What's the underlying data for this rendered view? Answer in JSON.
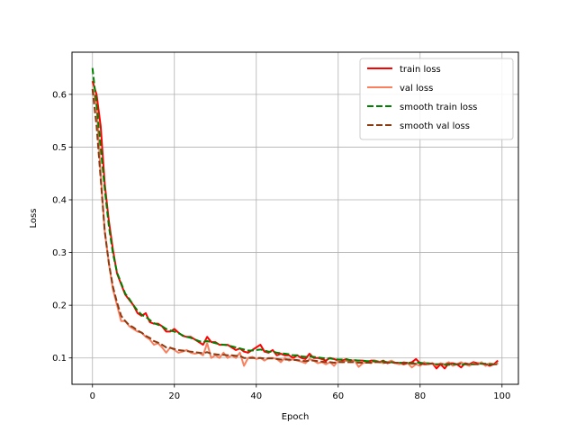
{
  "chart_data": {
    "type": "line",
    "title": "",
    "xlabel": "Epoch",
    "ylabel": "Loss",
    "xlim": [
      -5,
      104
    ],
    "ylim": [
      0.05,
      0.68
    ],
    "xticks": [
      0,
      20,
      40,
      60,
      80,
      100
    ],
    "yticks": [
      0.1,
      0.2,
      0.3,
      0.4,
      0.5,
      0.6
    ],
    "xtick_labels": [
      "0",
      "20",
      "40",
      "60",
      "80",
      "100"
    ],
    "ytick_labels": [
      "0.1",
      "0.2",
      "0.3",
      "0.4",
      "0.5",
      "0.6"
    ],
    "grid": true,
    "legend_position": "top-right",
    "series": [
      {
        "name": "train loss",
        "color": "#ff0000",
        "dash": "solid",
        "x": [
          0,
          1,
          2,
          3,
          4,
          5,
          6,
          7,
          8,
          9,
          10,
          11,
          12,
          13,
          14,
          15,
          16,
          17,
          18,
          19,
          20,
          21,
          22,
          23,
          24,
          25,
          26,
          27,
          28,
          29,
          30,
          31,
          32,
          33,
          34,
          35,
          36,
          37,
          38,
          39,
          40,
          41,
          42,
          43,
          44,
          45,
          46,
          47,
          48,
          49,
          50,
          51,
          52,
          53,
          54,
          55,
          56,
          57,
          58,
          59,
          60,
          61,
          62,
          63,
          64,
          65,
          66,
          67,
          68,
          69,
          70,
          71,
          72,
          73,
          74,
          75,
          76,
          77,
          78,
          79,
          80,
          81,
          82,
          83,
          84,
          85,
          86,
          87,
          88,
          89,
          90,
          91,
          92,
          93,
          94,
          95,
          96,
          97,
          98,
          99
        ],
        "y": [
          0.625,
          0.6,
          0.54,
          0.43,
          0.36,
          0.305,
          0.26,
          0.24,
          0.22,
          0.21,
          0.2,
          0.185,
          0.18,
          0.185,
          0.168,
          0.165,
          0.165,
          0.16,
          0.15,
          0.15,
          0.155,
          0.148,
          0.142,
          0.14,
          0.14,
          0.135,
          0.13,
          0.125,
          0.14,
          0.13,
          0.13,
          0.125,
          0.125,
          0.125,
          0.12,
          0.115,
          0.118,
          0.112,
          0.11,
          0.115,
          0.12,
          0.125,
          0.112,
          0.11,
          0.115,
          0.105,
          0.108,
          0.105,
          0.105,
          0.1,
          0.105,
          0.1,
          0.098,
          0.108,
          0.1,
          0.1,
          0.098,
          0.095,
          0.1,
          0.098,
          0.095,
          0.095,
          0.098,
          0.095,
          0.095,
          0.095,
          0.095,
          0.092,
          0.095,
          0.095,
          0.092,
          0.095,
          0.09,
          0.092,
          0.09,
          0.09,
          0.088,
          0.09,
          0.092,
          0.098,
          0.09,
          0.088,
          0.088,
          0.09,
          0.08,
          0.088,
          0.08,
          0.09,
          0.09,
          0.088,
          0.082,
          0.09,
          0.088,
          0.092,
          0.09,
          0.09,
          0.088,
          0.085,
          0.088,
          0.095
        ]
      },
      {
        "name": "val loss",
        "color": "#fa8060",
        "dash": "solid",
        "x": [
          0,
          1,
          2,
          3,
          4,
          5,
          6,
          7,
          8,
          9,
          10,
          11,
          12,
          13,
          14,
          15,
          16,
          17,
          18,
          19,
          20,
          21,
          22,
          23,
          24,
          25,
          26,
          27,
          28,
          29,
          30,
          31,
          32,
          33,
          34,
          35,
          36,
          37,
          38,
          39,
          40,
          41,
          42,
          43,
          44,
          45,
          46,
          47,
          48,
          49,
          50,
          51,
          52,
          53,
          54,
          55,
          56,
          57,
          58,
          59,
          60,
          61,
          62,
          63,
          64,
          65,
          66,
          67,
          68,
          69,
          70,
          71,
          72,
          73,
          74,
          75,
          76,
          77,
          78,
          79,
          80,
          81,
          82,
          83,
          84,
          85,
          86,
          87,
          88,
          89,
          90,
          91,
          92,
          93,
          94,
          95,
          96,
          97,
          98,
          99
        ],
        "y": [
          0.61,
          0.58,
          0.45,
          0.34,
          0.28,
          0.23,
          0.2,
          0.17,
          0.17,
          0.16,
          0.155,
          0.15,
          0.148,
          0.14,
          0.135,
          0.125,
          0.128,
          0.12,
          0.11,
          0.12,
          0.115,
          0.11,
          0.112,
          0.115,
          0.11,
          0.108,
          0.11,
          0.105,
          0.128,
          0.1,
          0.105,
          0.1,
          0.11,
          0.1,
          0.105,
          0.1,
          0.11,
          0.085,
          0.1,
          0.102,
          0.098,
          0.1,
          0.095,
          0.1,
          0.1,
          0.098,
          0.092,
          0.1,
          0.095,
          0.098,
          0.095,
          0.093,
          0.09,
          0.098,
          0.095,
          0.09,
          0.092,
          0.088,
          0.092,
          0.085,
          0.095,
          0.092,
          0.095,
          0.092,
          0.095,
          0.083,
          0.09,
          0.092,
          0.09,
          0.095,
          0.093,
          0.09,
          0.092,
          0.095,
          0.09,
          0.088,
          0.092,
          0.09,
          0.082,
          0.088,
          0.085,
          0.092,
          0.088,
          0.09,
          0.085,
          0.09,
          0.088,
          0.092,
          0.085,
          0.088,
          0.092,
          0.088,
          0.085,
          0.09,
          0.088,
          0.092,
          0.085,
          0.09,
          0.088,
          0.09
        ]
      },
      {
        "name": "smooth train loss",
        "color": "#008000",
        "dash": "dashed",
        "x": [
          0,
          1,
          2,
          3,
          4,
          5,
          6,
          7,
          8,
          9,
          10,
          11,
          12,
          13,
          14,
          15,
          16,
          17,
          18,
          19,
          20,
          21,
          22,
          23,
          24,
          25,
          26,
          27,
          28,
          29,
          30,
          31,
          32,
          33,
          34,
          35,
          36,
          37,
          38,
          39,
          40,
          41,
          42,
          43,
          44,
          45,
          46,
          47,
          48,
          49,
          50,
          51,
          52,
          53,
          54,
          55,
          56,
          57,
          58,
          59,
          60,
          61,
          62,
          63,
          64,
          65,
          66,
          67,
          68,
          69,
          70,
          71,
          72,
          73,
          74,
          75,
          76,
          77,
          78,
          79,
          80,
          81,
          82,
          83,
          84,
          85,
          86,
          87,
          88,
          89,
          90,
          91,
          92,
          93,
          94,
          95,
          96,
          97,
          98,
          99
        ],
        "y": [
          0.65,
          0.58,
          0.5,
          0.42,
          0.35,
          0.298,
          0.262,
          0.242,
          0.222,
          0.212,
          0.2,
          0.19,
          0.182,
          0.178,
          0.172,
          0.166,
          0.163,
          0.16,
          0.155,
          0.152,
          0.15,
          0.147,
          0.143,
          0.14,
          0.138,
          0.135,
          0.132,
          0.13,
          0.132,
          0.13,
          0.128,
          0.126,
          0.125,
          0.124,
          0.122,
          0.12,
          0.118,
          0.116,
          0.114,
          0.114,
          0.115,
          0.116,
          0.114,
          0.112,
          0.112,
          0.11,
          0.109,
          0.108,
          0.107,
          0.105,
          0.105,
          0.103,
          0.102,
          0.103,
          0.102,
          0.101,
          0.1,
          0.099,
          0.099,
          0.098,
          0.097,
          0.097,
          0.097,
          0.096,
          0.096,
          0.095,
          0.095,
          0.094,
          0.094,
          0.094,
          0.093,
          0.093,
          0.092,
          0.092,
          0.091,
          0.091,
          0.09,
          0.09,
          0.09,
          0.091,
          0.091,
          0.09,
          0.09,
          0.089,
          0.088,
          0.088,
          0.087,
          0.087,
          0.088,
          0.088,
          0.087,
          0.088,
          0.088,
          0.088,
          0.089,
          0.089,
          0.089,
          0.088,
          0.088,
          0.09
        ]
      },
      {
        "name": "smooth val loss",
        "color": "#8b3a0f",
        "dash": "dashed",
        "x": [
          0,
          1,
          2,
          3,
          4,
          5,
          6,
          7,
          8,
          9,
          10,
          11,
          12,
          13,
          14,
          15,
          16,
          17,
          18,
          19,
          20,
          21,
          22,
          23,
          24,
          25,
          26,
          27,
          28,
          29,
          30,
          31,
          32,
          33,
          34,
          35,
          36,
          37,
          38,
          39,
          40,
          41,
          42,
          43,
          44,
          45,
          46,
          47,
          48,
          49,
          50,
          51,
          52,
          53,
          54,
          55,
          56,
          57,
          58,
          59,
          60,
          61,
          62,
          63,
          64,
          65,
          66,
          67,
          68,
          69,
          70,
          71,
          72,
          73,
          74,
          75,
          76,
          77,
          78,
          79,
          80,
          81,
          82,
          83,
          84,
          85,
          86,
          87,
          88,
          89,
          90,
          91,
          92,
          93,
          94,
          95,
          96,
          97,
          98,
          99
        ],
        "y": [
          0.61,
          0.54,
          0.44,
          0.34,
          0.28,
          0.235,
          0.205,
          0.18,
          0.17,
          0.162,
          0.158,
          0.152,
          0.148,
          0.142,
          0.138,
          0.132,
          0.129,
          0.125,
          0.12,
          0.119,
          0.117,
          0.115,
          0.114,
          0.113,
          0.112,
          0.111,
          0.11,
          0.109,
          0.111,
          0.108,
          0.107,
          0.106,
          0.106,
          0.105,
          0.105,
          0.104,
          0.104,
          0.1,
          0.1,
          0.1,
          0.1,
          0.1,
          0.099,
          0.099,
          0.099,
          0.098,
          0.097,
          0.097,
          0.097,
          0.096,
          0.096,
          0.095,
          0.094,
          0.095,
          0.095,
          0.094,
          0.093,
          0.092,
          0.092,
          0.091,
          0.092,
          0.092,
          0.092,
          0.092,
          0.092,
          0.091,
          0.091,
          0.091,
          0.091,
          0.092,
          0.092,
          0.091,
          0.091,
          0.092,
          0.091,
          0.091,
          0.091,
          0.091,
          0.089,
          0.089,
          0.088,
          0.089,
          0.089,
          0.089,
          0.088,
          0.088,
          0.088,
          0.089,
          0.088,
          0.088,
          0.089,
          0.089,
          0.088,
          0.088,
          0.088,
          0.089,
          0.088,
          0.088,
          0.088,
          0.088
        ]
      }
    ]
  }
}
